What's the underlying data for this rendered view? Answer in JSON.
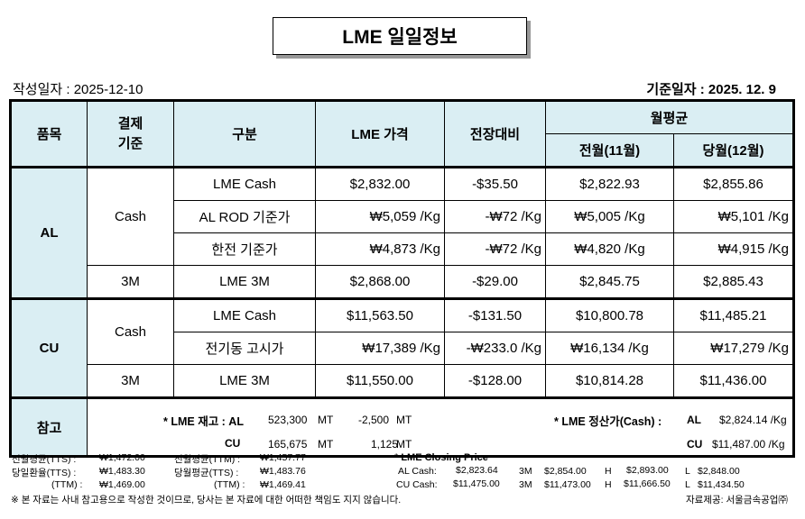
{
  "title": "LME 일일정보",
  "created": "작성일자 :  2025-12-10",
  "base_date": "기준일자 : 2025.   12.   9",
  "header": {
    "item": "품목",
    "settle": "결제\n기준",
    "type": "구분",
    "price": "LME 가격",
    "change": "전장대비",
    "monthly": "월평균",
    "prev": "전월(11월)",
    "curr": "당월(12월)"
  },
  "rows": [
    {
      "item": "AL",
      "settle": "Cash",
      "type": "LME Cash",
      "price": "$2,832.00",
      "change": "-$35.50",
      "prev": "$2,822.93",
      "curr": "$2,855.86"
    },
    {
      "type": "AL ROD 기준가",
      "price": "₩5,059 /Kg",
      "change": "-₩72 /Kg",
      "prev": "₩5,005 /Kg",
      "curr": "₩5,101 /Kg"
    },
    {
      "type": "한전 기준가",
      "price": "₩4,873 /Kg",
      "change": "-₩72 /Kg",
      "prev": "₩4,820 /Kg",
      "curr": "₩4,915 /Kg"
    },
    {
      "settle": "3M",
      "type": "LME  3M",
      "price": "$2,868.00",
      "change": "-$29.00",
      "prev": "$2,845.75",
      "curr": "$2,885.43"
    },
    {
      "item": "CU",
      "settle": "Cash",
      "type": "LME Cash",
      "price": "$11,563.50",
      "change": "-$131.50",
      "prev": "$10,800.78",
      "curr": "$11,485.21"
    },
    {
      "type": "전기동 고시가",
      "price": "₩17,389 /Kg",
      "change": "-₩233.0   /Kg",
      "prev": "₩16,134 /Kg",
      "curr": "₩17,279 /Kg"
    },
    {
      "settle": "3M",
      "type": "LME 3M",
      "price": "$11,550.00",
      "change": "-$128.00",
      "prev": "$10,814.28",
      "curr": "$11,436.00"
    }
  ],
  "reference": {
    "label": "참고",
    "stock_label": "* LME 재고 : AL",
    "cu": "CU",
    "al_stock": "523,300",
    "al_unit": "MT",
    "al_chg": "-2,500",
    "al_chg_unit": "MT",
    "cu_stock": "165,675",
    "cu_unit": "MT",
    "cu_chg": "1,125",
    "cu_chg_unit": "MT",
    "settle_label": "* LME 정산가(Cash) :",
    "al": "AL",
    "al_settle": "$2,824.14 /Kg",
    "cu_settle": "$11,487.00 /Kg"
  },
  "footer": {
    "l1a": "전월평균(TTS) :",
    "l1b": "₩1,472.00",
    "l1c": "전월평균(TTM) :",
    "l1d": "₩1,457.77",
    "l2a": "당일환율(TTS) :",
    "l2b": "₩1,483.30",
    "l2c": "당월평균(TTS) :",
    "l2d": "₩1,483.76",
    "l3a": "(TTM) :",
    "l3b": "₩1,469.00",
    "l3c": "(TTM) :",
    "l3d": "₩1,469.41",
    "closing_title": "* LME Closing Price",
    "al_row": [
      "AL  Cash:",
      "$2,823.64",
      "3M",
      "$2,854.00",
      "H",
      "$2,893.00",
      "L",
      "$2,848.00"
    ],
    "cu_row": [
      "CU  Cash:",
      "$11,475.00",
      "3M",
      "$11,473.00",
      "H",
      "$11,666.50",
      "L",
      "$11,434.50"
    ],
    "disclaimer": "※ 본 자료는 사내 참고용으로 작성한 것이므로, 당사는 본 자료에 대한 어떠한 책임도 지지 않습니다.",
    "source": "자료제공: 서울금속공업㈜"
  }
}
